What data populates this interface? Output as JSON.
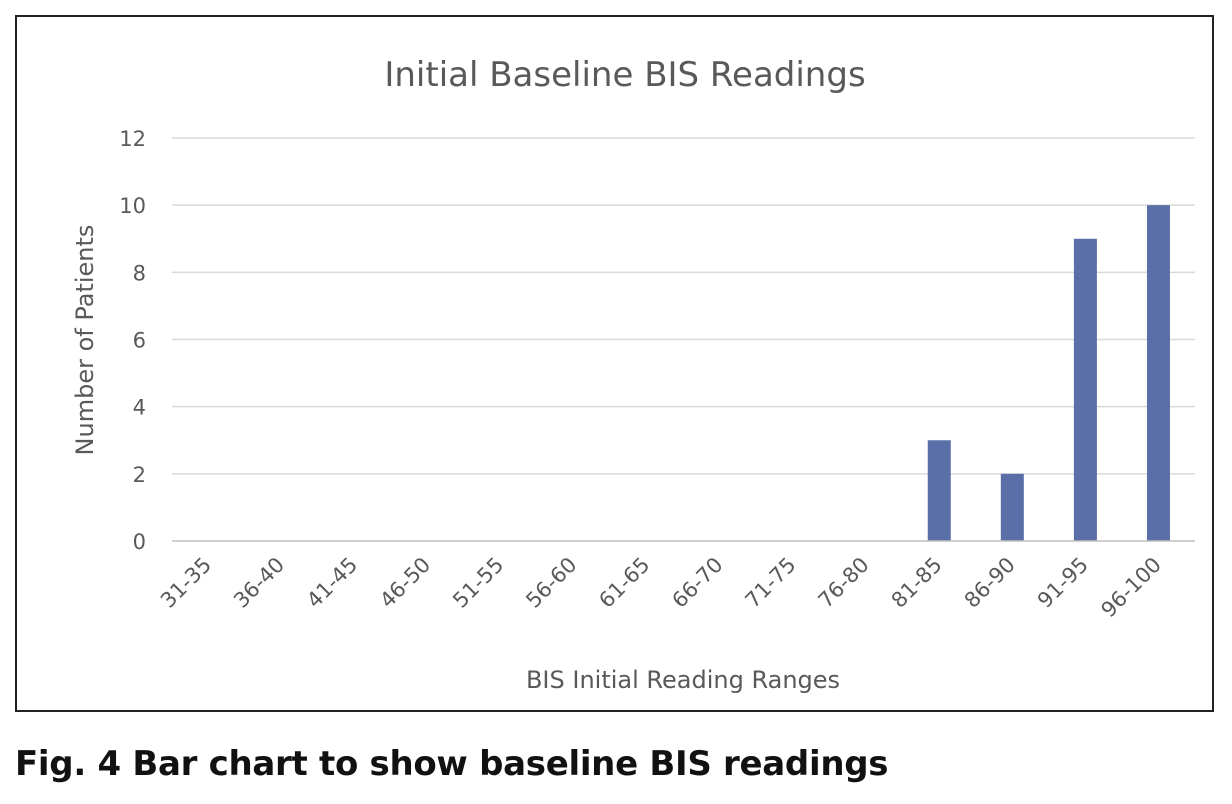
{
  "caption": "Fig. 4  Bar chart to show baseline BIS readings",
  "chart_data": {
    "type": "bar",
    "title": "Initial Baseline BIS Readings",
    "xlabel": "BIS Initial Reading Ranges",
    "ylabel": "Number of Patients",
    "categories": [
      "31-35",
      "36-40",
      "41-45",
      "46-50",
      "51-55",
      "56-60",
      "61-65",
      "66-70",
      "71-75",
      "76-80",
      "81-85",
      "86-90",
      "91-95",
      "96-100"
    ],
    "values": [
      0,
      0,
      0,
      0,
      0,
      0,
      0,
      0,
      0,
      0,
      3,
      2,
      9,
      10
    ],
    "ylim": [
      0,
      12
    ],
    "yticks": [
      0,
      2,
      4,
      6,
      8,
      10,
      12
    ],
    "grid": true,
    "legend": "none",
    "bar_color": "#5a6ea8",
    "grid_color": "#d9d9d9",
    "axis_color": "#bfbfbf"
  }
}
